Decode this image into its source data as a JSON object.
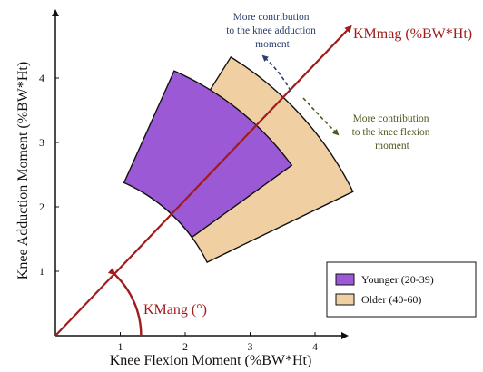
{
  "chart_data": {
    "type": "area",
    "xlabel": "Knee Flexion Moment (%BW*Ht)",
    "ylabel": "Knee Adduction Moment (%BW*Ht)",
    "xlim": [
      0,
      4.5
    ],
    "ylim": [
      0,
      4.8
    ],
    "xticks": [
      "1",
      "2",
      "3",
      "4"
    ],
    "yticks": [
      "1",
      "2",
      "3",
      "4"
    ],
    "x_tick_values": [
      1,
      2,
      3,
      4
    ],
    "y_tick_values": [
      1,
      2,
      3,
      4
    ],
    "grid": false,
    "legend_position": "bottom-right",
    "series": [
      {
        "name": "Younger (20-39)",
        "color": "#9b59d6",
        "kmmag_range": [
          2.6,
          4.5
        ],
        "kmang_range_deg": [
          36,
          66
        ]
      },
      {
        "name": "Older (40-60)",
        "color": "#f0d0a3",
        "kmmag_range": [
          2.6,
          5.1
        ],
        "kmang_range_deg": [
          26,
          58
        ]
      }
    ],
    "annotations": {
      "kmmag_label": "KMmag (%BW*Ht)",
      "kmang_label": "KMang (°)",
      "adduction_note": [
        "More contribution",
        "to the knee adduction",
        "moment"
      ],
      "flexion_note": [
        "More contribution",
        "to the knee flexion",
        "moment"
      ]
    },
    "kmmag_vector_end": [
      4.55,
      4.8
    ],
    "colors": {
      "axis": "#111111",
      "vector": "#a01c1c",
      "adduction_arrow": "#2a3f6b",
      "flexion_arrow": "#4b5b1e"
    }
  }
}
